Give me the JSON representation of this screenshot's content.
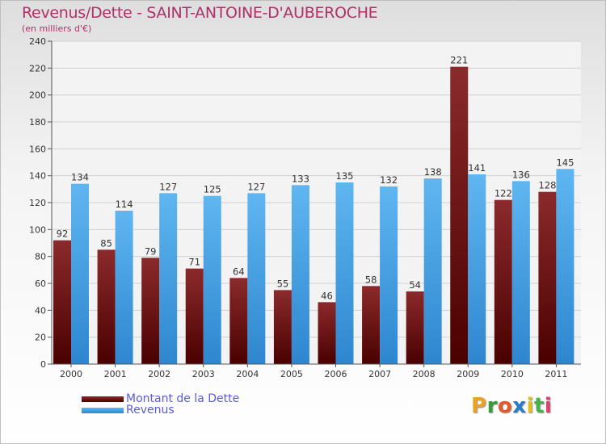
{
  "title": "Revenus/Dette - SAINT-ANTOINE-D'AUBEROCHE",
  "subtitle": "(en milliers d'€)",
  "logo": {
    "letters": [
      "P",
      "r",
      "o",
      "x",
      "i",
      "t",
      "i"
    ],
    "colors": [
      "#f0a020",
      "#3a9a3a",
      "#e05a2a",
      "#2a7ac8",
      "#e0c020",
      "#4ab04a",
      "#e04070"
    ]
  },
  "colors": {
    "dette": "#6e1a1c",
    "revenus": "#4aa3e8",
    "title": "#b0306a",
    "legend_text": "#5a5ae0"
  },
  "legend": {
    "dette": "Montant de la Dette",
    "revenus": "Revenus"
  },
  "chart_data": {
    "type": "bar",
    "title": "Revenus/Dette - SAINT-ANTOINE-D'AUBEROCHE",
    "subtitle": "(en milliers d'€)",
    "categories": [
      "2000",
      "2001",
      "2002",
      "2003",
      "2004",
      "2005",
      "2006",
      "2007",
      "2008",
      "2009",
      "2010",
      "2011"
    ],
    "series": [
      {
        "name": "Montant de la Dette",
        "values": [
          92,
          85,
          79,
          71,
          64,
          55,
          46,
          58,
          54,
          221,
          122,
          128
        ]
      },
      {
        "name": "Revenus",
        "values": [
          134,
          114,
          127,
          125,
          127,
          133,
          135,
          132,
          138,
          141,
          136,
          145
        ]
      }
    ],
    "ylim": [
      0,
      240
    ],
    "yticks": [
      0,
      20,
      40,
      60,
      80,
      100,
      120,
      140,
      160,
      180,
      200,
      220,
      240
    ],
    "grid": true,
    "legend_position": "bottom-left"
  }
}
